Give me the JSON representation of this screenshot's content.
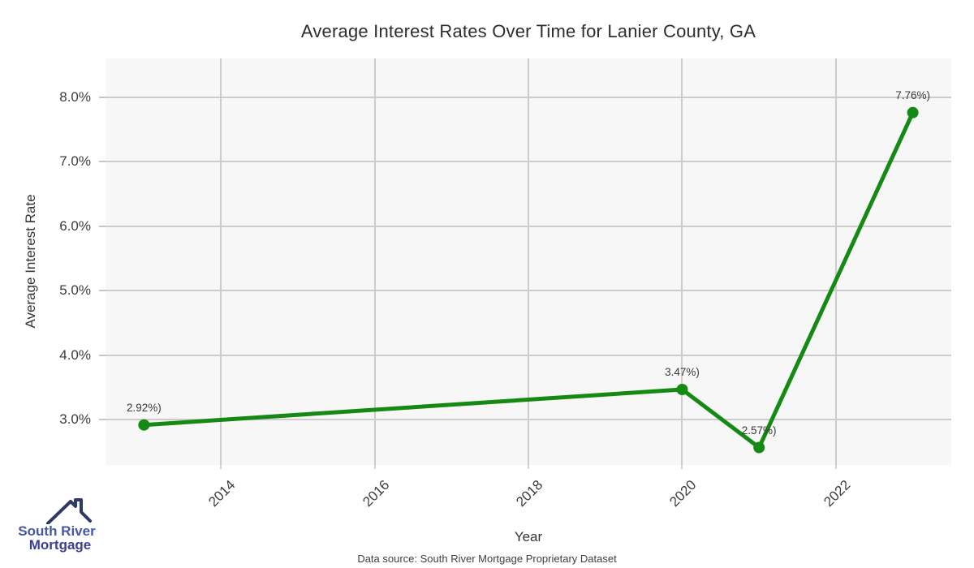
{
  "title": "Average Interest Rates Over Time for Lanier County, GA",
  "axes": {
    "x_label": "Year",
    "y_label": "Average Interest Rate",
    "x_ticks": [
      {
        "value": 2014,
        "label": "2014"
      },
      {
        "value": 2016,
        "label": "2016"
      },
      {
        "value": 2018,
        "label": "2018"
      },
      {
        "value": 2020,
        "label": "2020"
      },
      {
        "value": 2022,
        "label": "2022"
      }
    ],
    "y_ticks": [
      {
        "value": 3.0,
        "label": "3.0%"
      },
      {
        "value": 4.0,
        "label": "4.0%"
      },
      {
        "value": 5.0,
        "label": "5.0%"
      },
      {
        "value": 6.0,
        "label": "6.0%"
      },
      {
        "value": 7.0,
        "label": "7.0%"
      },
      {
        "value": 8.0,
        "label": "8.0%"
      }
    ]
  },
  "chart_data": {
    "type": "line",
    "title": "Average Interest Rates Over Time for Lanier County, GA",
    "xlabel": "Year",
    "ylabel": "Average Interest Rate",
    "x": [
      2013,
      2020,
      2021,
      2023
    ],
    "values": [
      2.92,
      3.47,
      2.57,
      7.76
    ],
    "point_labels": [
      "2.92%)",
      "3.47%)",
      "2.57%)",
      "7.76%)"
    ],
    "xlim": [
      2012.5,
      2023.5
    ],
    "ylim": [
      2.3,
      8.6
    ],
    "grid": true,
    "legend": "none",
    "line_color": "#148a14",
    "marker_color": "#148a14"
  },
  "footer": {
    "source_text": "Data source: South River Mortgage Proprietary Dataset"
  },
  "logo": {
    "line1": "South River",
    "line2": "Mortgage",
    "roof_color": "#2d3a66",
    "line1_color": "#4457a6",
    "line2_color": "#3b3f94"
  },
  "colors": {
    "plot_bg": "#f7f7f7",
    "gridline": "#cccccc",
    "title_text": "#2d2d2d",
    "tick_text": "#3b3b3b"
  }
}
